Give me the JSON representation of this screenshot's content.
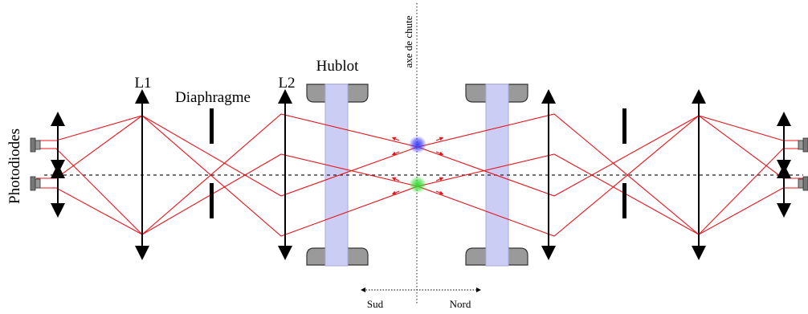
{
  "labels": {
    "photodiodes": "Photodiodes",
    "l1": "L1",
    "diaphragme": "Diaphragme",
    "l2": "L2",
    "hublot": "Hublot",
    "axe_de_chute": "axe de chute",
    "sud": "Sud",
    "nord": "Nord"
  },
  "colors": {
    "laser": "#e8141c",
    "window": "#cccdf4",
    "mount": "#9a9a9a",
    "atom_top": "#3b3bff",
    "atom_bottom": "#33dd33"
  }
}
